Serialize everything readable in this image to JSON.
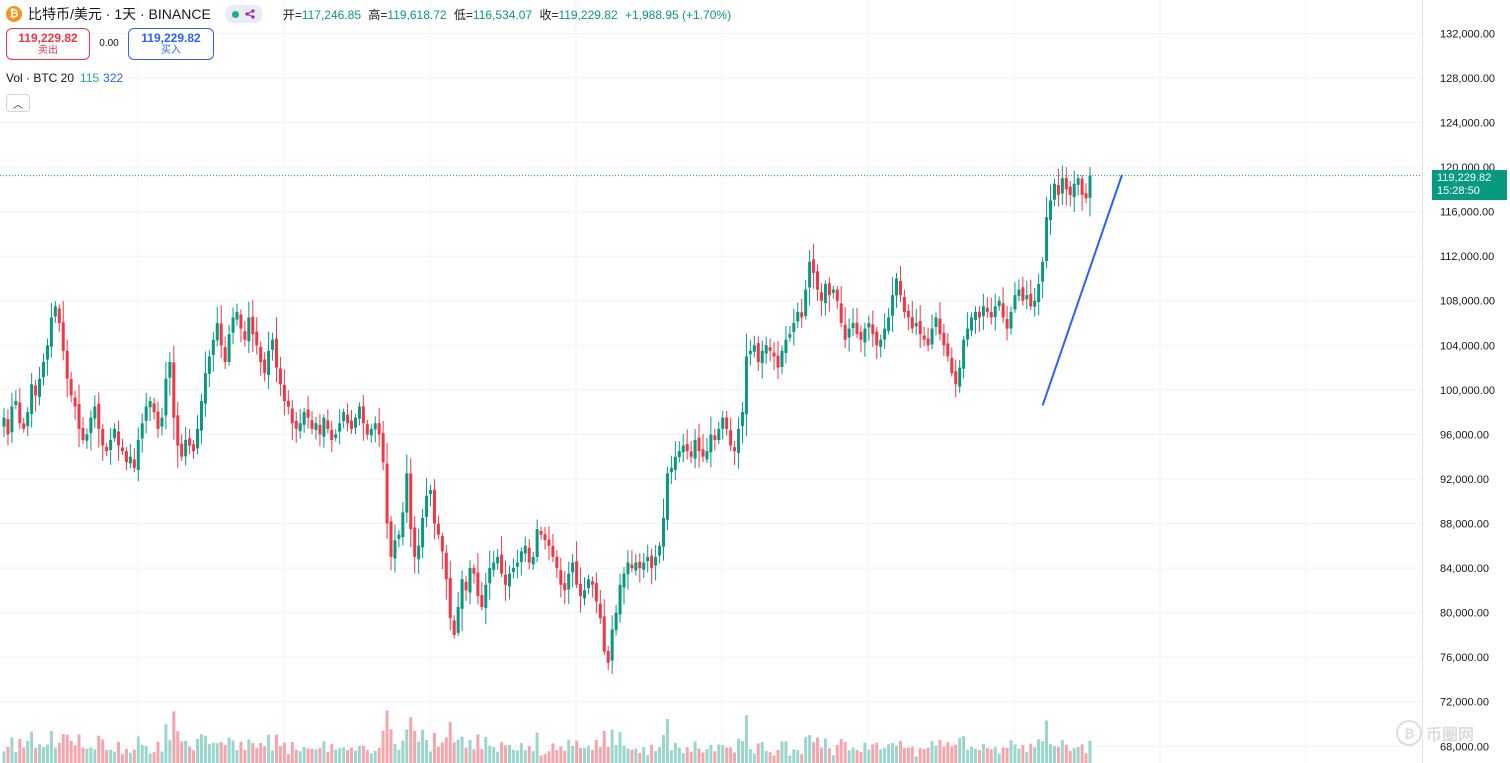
{
  "header": {
    "coin_icon_glyph": "₿",
    "symbol": "比特币/美元 · 1天 · BINANCE",
    "open_label": "开",
    "open": "117,246.85",
    "high_label": "高",
    "high": "119,618.72",
    "low_label": "低",
    "low": "116,534.07",
    "close_label": "收",
    "close": "119,229.82",
    "change": "+1,988.95 (+1.70%)"
  },
  "trade": {
    "sell_price": "119,229.82",
    "sell_label": "卖出",
    "spread": "0.00",
    "buy_price": "119,229.82",
    "buy_label": "买入"
  },
  "volume_legend": {
    "label": "Vol · BTC 20",
    "value1": "115",
    "value2": "322"
  },
  "last_price_tag": {
    "price": "119,229.82",
    "countdown": "15:28:50"
  },
  "watermark": {
    "glyph": "₿",
    "text": "币圈网"
  },
  "colors": {
    "up": "#089981",
    "down": "#f23645",
    "up_vol": "#9bd6cc",
    "down_vol": "#f5a6ad",
    "trendline": "#2962ff",
    "grid": "#f0f3fa"
  },
  "chart_data": {
    "type": "candlestick",
    "symbol": "BTC/USD",
    "interval": "1D",
    "y_axis": {
      "ticks": [
        132000,
        128000,
        124000,
        120000,
        116000,
        112000,
        108000,
        104000,
        100000,
        96000,
        92000,
        88000,
        84000,
        80000,
        76000,
        72000,
        68000
      ],
      "tick_labels": [
        "132,000.00",
        "128,000.00",
        "124,000.00",
        "120,000.00",
        "116,000.00",
        "112,000.00",
        "108,000.00",
        "104,000.00",
        "100,000.00",
        "96,000.00",
        "92,000.00",
        "88,000.00",
        "84,000.00",
        "80,000.00",
        "76,000.00",
        "72,000.00",
        "68,000.00"
      ],
      "range": [
        66500,
        135000
      ],
      "position": "right"
    },
    "last_price": 119229.82,
    "close_series": [
      97500,
      96000,
      98500,
      99000,
      97000,
      96500,
      98000,
      100500,
      99500,
      101000,
      102500,
      104000,
      106500,
      107500,
      106000,
      103500,
      101000,
      99500,
      98500,
      96500,
      95500,
      96000,
      97500,
      98500,
      96500,
      95000,
      94500,
      95500,
      96500,
      95000,
      94500,
      93500,
      94000,
      93000,
      95500,
      97000,
      98500,
      99000,
      98000,
      96500,
      97500,
      101000,
      102500,
      97500,
      95000,
      94000,
      95500,
      95000,
      94500,
      96500,
      99000,
      101500,
      103000,
      104500,
      106000,
      104000,
      102500,
      105000,
      106500,
      107000,
      105500,
      104500,
      106500,
      105000,
      104000,
      102500,
      101500,
      103500,
      104500,
      102000,
      100500,
      99000,
      98500,
      97000,
      96500,
      97000,
      98000,
      97500,
      96500,
      97000,
      96000,
      97500,
      96500,
      95500,
      96000,
      97000,
      98000,
      97000,
      96500,
      97500,
      98500,
      97000,
      96000,
      96500,
      97000,
      96000,
      93500,
      88000,
      85000,
      86500,
      87000,
      89000,
      92500,
      87500,
      85000,
      86000,
      88500,
      90500,
      91000,
      88000,
      87000,
      85500,
      83000,
      79500,
      78000,
      80500,
      83000,
      82000,
      84000,
      83500,
      81500,
      80500,
      82500,
      84000,
      84500,
      85000,
      83500,
      82500,
      83500,
      84000,
      84500,
      85500,
      86000,
      84500,
      85000,
      87500,
      87000,
      86500,
      86000,
      85000,
      84000,
      82500,
      82000,
      83500,
      84500,
      82500,
      81500,
      82000,
      83000,
      82500,
      81000,
      79500,
      76500,
      75500,
      78500,
      80000,
      82500,
      83500,
      84500,
      84000,
      84500,
      84000,
      84500,
      85000,
      84000,
      85000,
      86000,
      88500,
      92500,
      93000,
      94000,
      94500,
      95000,
      94500,
      94000,
      95500,
      94500,
      94000,
      94500,
      96000,
      95500,
      96500,
      97500,
      96500,
      95000,
      94500,
      96500,
      98000,
      103000,
      103500,
      104000,
      102500,
      103500,
      104000,
      103500,
      103000,
      102000,
      103500,
      104500,
      105000,
      106000,
      107000,
      106500,
      109000,
      111500,
      110500,
      109000,
      108000,
      109500,
      108500,
      109000,
      108000,
      106000,
      104500,
      105500,
      106000,
      105000,
      104500,
      105500,
      106000,
      105000,
      104000,
      104500,
      105500,
      106500,
      108500,
      110000,
      108500,
      107000,
      106500,
      105500,
      106000,
      105000,
      104500,
      104000,
      105500,
      106500,
      105000,
      104000,
      103000,
      101500,
      100500,
      102000,
      104500,
      105500,
      106500,
      107000,
      106500,
      107500,
      107000,
      106500,
      107500,
      108000,
      106500,
      105500,
      107000,
      108500,
      109000,
      108000,
      108500,
      107500,
      108000,
      109500,
      111500,
      115500,
      117000,
      118500,
      117500,
      119000,
      118000,
      117500,
      118500,
      119000,
      117500,
      117200,
      119230
    ],
    "trendline": {
      "from": 98600,
      "to": 119300,
      "color": "#2962ff"
    }
  }
}
